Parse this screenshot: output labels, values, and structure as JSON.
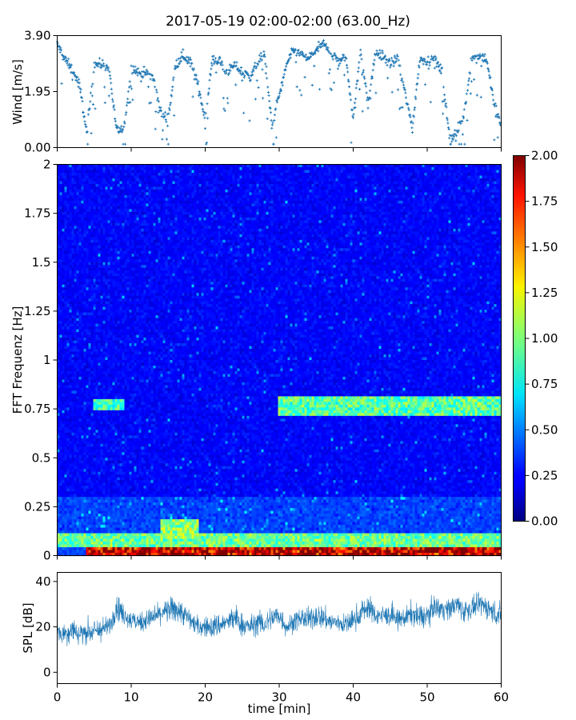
{
  "title": "2017-05-19 02:00-02:00 (63.00_Hz)",
  "chart_data": [
    {
      "type": "scatter",
      "panel": "wind",
      "ylabel": "Wind [m/s]",
      "ylim": [
        0,
        3.9
      ],
      "yticks": [
        "0.00",
        "1.95",
        "3.90"
      ],
      "xlim": [
        0,
        60
      ],
      "color": "#1f77b4",
      "marker": "+",
      "trend": {
        "x": [
          0,
          1,
          2,
          3,
          4,
          5,
          6,
          7,
          8,
          9,
          10,
          11,
          12,
          13,
          14,
          15,
          16,
          17,
          18,
          19,
          20,
          21,
          22,
          23,
          24,
          25,
          26,
          27,
          28,
          29,
          30,
          31,
          32,
          33,
          34,
          35,
          36,
          37,
          38,
          39,
          40,
          41,
          42,
          43,
          44,
          45,
          46,
          47,
          48,
          49,
          50,
          51,
          52,
          53,
          54,
          55,
          56,
          57,
          58,
          59,
          60
        ],
        "y": [
          3.6,
          3.1,
          2.7,
          2.2,
          0.5,
          2.9,
          2.9,
          2.8,
          0.6,
          0.6,
          2.8,
          2.6,
          2.6,
          2.4,
          1.2,
          1.0,
          2.9,
          3.2,
          3.0,
          2.2,
          1.0,
          3.1,
          3.0,
          2.6,
          2.9,
          2.6,
          2.5,
          2.9,
          3.3,
          0.8,
          1.8,
          2.9,
          3.4,
          3.2,
          3.1,
          3.4,
          3.6,
          3.3,
          3.0,
          3.2,
          1.0,
          3.4,
          1.5,
          3.3,
          3.2,
          2.9,
          3.1,
          1.9,
          0.7,
          3.1,
          3.0,
          3.1,
          2.6,
          0.4,
          0.5,
          1.2,
          3.1,
          3.2,
          3.1,
          1.6,
          0.7
        ]
      }
    },
    {
      "type": "heatmap",
      "panel": "spectrogram",
      "ylabel": "FFT Frequenz [Hz]",
      "ylim": [
        0,
        2
      ],
      "yticks": [
        "0",
        "0.25",
        "0.5",
        "0.75",
        "1",
        "1.25",
        "1.5",
        "1.75",
        "2"
      ],
      "xlim": [
        0,
        60
      ],
      "colormap": "jet",
      "colorbar": {
        "range": [
          0,
          2
        ],
        "ticks": [
          "0.00",
          "0.25",
          "0.50",
          "0.75",
          "1.00",
          "1.25",
          "1.50",
          "1.75",
          "2.00"
        ]
      },
      "features": [
        {
          "band_hz": [
            0.0,
            0.05
          ],
          "time_min": [
            4,
            60
          ],
          "level": 1.9
        },
        {
          "band_hz": [
            0.05,
            0.12
          ],
          "time_min": [
            0,
            60
          ],
          "level": 0.9
        },
        {
          "band_hz": [
            0.72,
            0.82
          ],
          "time_min": [
            30,
            60
          ],
          "level": 1.0
        },
        {
          "band_hz": [
            0.75,
            0.8
          ],
          "time_min": [
            5,
            9
          ],
          "level": 0.95
        },
        {
          "band_hz": [
            0.08,
            0.18
          ],
          "time_min": [
            14,
            19
          ],
          "level": 1.0
        }
      ],
      "background_level": 0.25
    },
    {
      "type": "line",
      "panel": "spl",
      "ylabel": "SPL [dB]",
      "xlabel": "time [min]",
      "ylim": [
        -5,
        44
      ],
      "yticks": [
        "0",
        "20",
        "40"
      ],
      "xlim": [
        0,
        60
      ],
      "xticks": [
        "0",
        "10",
        "20",
        "30",
        "40",
        "50",
        "60"
      ],
      "color": "#1f77b4",
      "envelope": {
        "x": [
          0,
          1,
          2,
          3,
          4,
          5,
          6,
          7,
          7.5,
          8,
          9,
          10,
          11,
          12,
          13,
          14,
          15,
          16,
          17,
          18,
          19,
          20,
          21,
          22,
          23,
          24,
          25,
          26,
          27,
          28,
          29,
          30,
          31,
          32,
          33,
          34,
          35,
          36,
          37,
          38,
          39,
          40,
          41,
          42,
          43,
          44,
          45,
          46,
          47,
          48,
          49,
          50,
          51,
          52,
          53,
          54,
          55,
          56,
          57,
          58,
          59,
          60
        ],
        "mean": [
          18,
          17,
          19,
          17,
          18,
          18,
          19,
          20,
          24,
          30,
          25,
          23,
          22,
          23,
          24,
          26,
          27,
          28,
          26,
          23,
          20,
          20,
          20,
          21,
          22,
          24,
          21,
          20,
          22,
          21,
          24,
          25,
          20,
          22,
          24,
          23,
          25,
          24,
          22,
          22,
          21,
          23,
          26,
          29,
          25,
          25,
          25,
          23,
          24,
          26,
          24,
          25,
          29,
          28,
          28,
          30,
          27,
          28,
          30,
          29,
          26,
          25
        ],
        "spread": [
          5,
          6,
          6,
          6,
          6,
          6,
          6,
          5,
          6,
          7,
          5,
          5,
          5,
          5,
          5,
          5,
          6,
          7,
          6,
          5,
          5,
          5,
          6,
          6,
          5,
          7,
          6,
          5,
          6,
          6,
          6,
          6,
          5,
          5,
          5,
          6,
          6,
          6,
          5,
          5,
          5,
          6,
          6,
          6,
          5,
          5,
          5,
          5,
          5,
          6,
          6,
          6,
          5,
          6,
          5,
          6,
          6,
          5,
          5,
          6,
          6,
          6
        ]
      }
    }
  ]
}
